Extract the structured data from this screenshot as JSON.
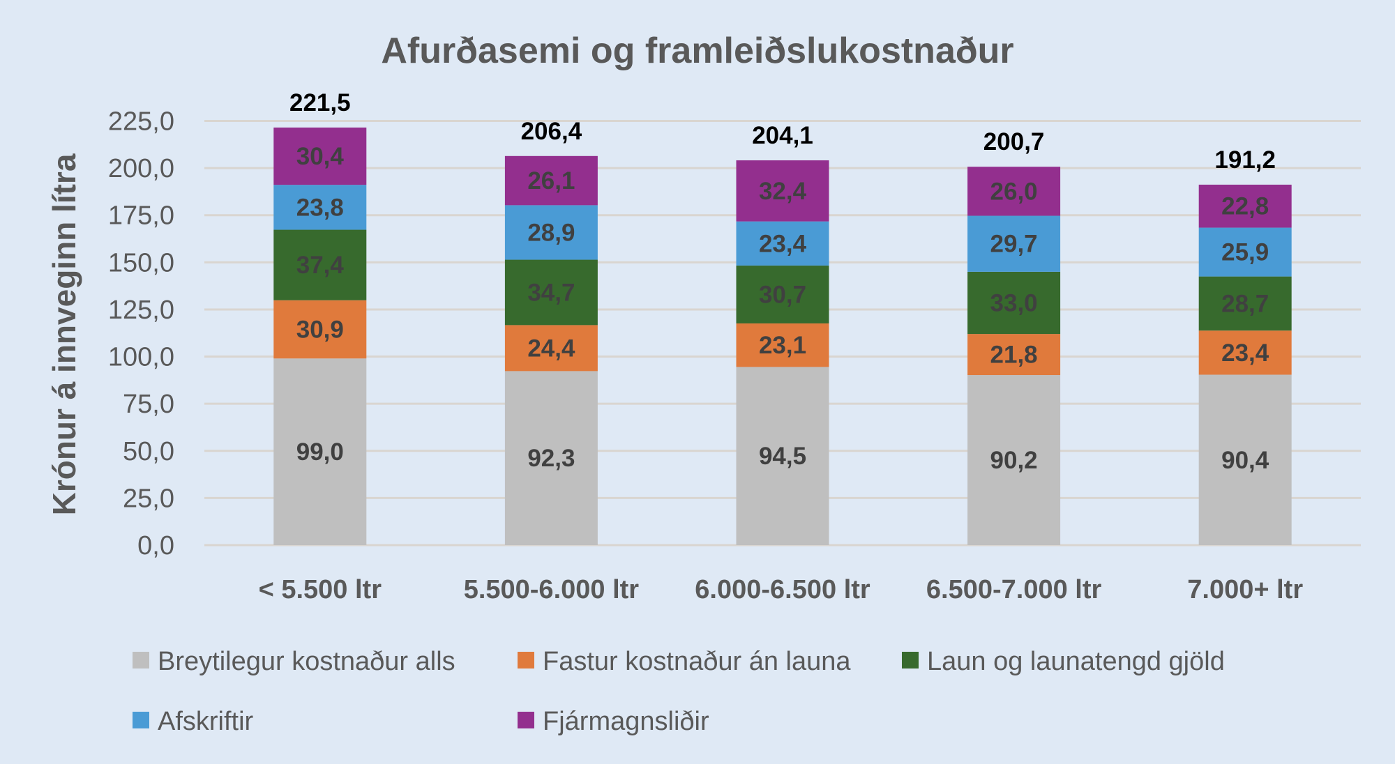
{
  "chart_data": {
    "type": "bar",
    "stacked": true,
    "title": "Afurðasemi og framleiðslukostnaður",
    "xlabel": "",
    "ylabel": "Krónur á innveginn lítra",
    "ylim": [
      0,
      225
    ],
    "yticks": [
      "0,0",
      "25,0",
      "50,0",
      "75,0",
      "100,0",
      "125,0",
      "150,0",
      "175,0",
      "200,0",
      "225,0"
    ],
    "grid": true,
    "legend_position": "bottom",
    "categories": [
      "< 5.500 ltr",
      "5.500-6.000 ltr",
      "6.000-6.500 ltr",
      "6.500-7.000 ltr",
      "7.000+ ltr"
    ],
    "series": [
      {
        "name": "Breytilegur kostnaður alls",
        "color": "#bfbfbf",
        "values": [
          99.0,
          92.3,
          94.5,
          90.2,
          90.4
        ],
        "labels": [
          "99,0",
          "92,3",
          "94,5",
          "90,2",
          "90,4"
        ]
      },
      {
        "name": "Fastur kostnaður án launa",
        "color": "#e07a3c",
        "values": [
          30.9,
          24.4,
          23.1,
          21.8,
          23.4
        ],
        "labels": [
          "30,9",
          "24,4",
          "23,1",
          "21,8",
          "23,4"
        ]
      },
      {
        "name": "Laun og launatengd gjöld",
        "color": "#376a2d",
        "values": [
          37.4,
          34.7,
          30.7,
          33.0,
          28.7
        ],
        "labels": [
          "37,4",
          "34,7",
          "30,7",
          "33,0",
          "28,7"
        ]
      },
      {
        "name": "Afskriftir",
        "color": "#4a9bd5",
        "values": [
          23.8,
          28.9,
          23.4,
          29.7,
          25.9
        ],
        "labels": [
          "23,8",
          "28,9",
          "23,4",
          "29,7",
          "25,9"
        ]
      },
      {
        "name": "Fjármagnsliðir",
        "color": "#932f8e",
        "values": [
          30.4,
          26.1,
          32.4,
          26.0,
          22.8
        ],
        "labels": [
          "30,4",
          "26,1",
          "32,4",
          "26,0",
          "22,8"
        ]
      }
    ],
    "totals": [
      221.5,
      206.4,
      204.1,
      200.7,
      191.2
    ],
    "total_labels": [
      "221,5",
      "206,4",
      "204,1",
      "200,7",
      "191,2"
    ]
  }
}
